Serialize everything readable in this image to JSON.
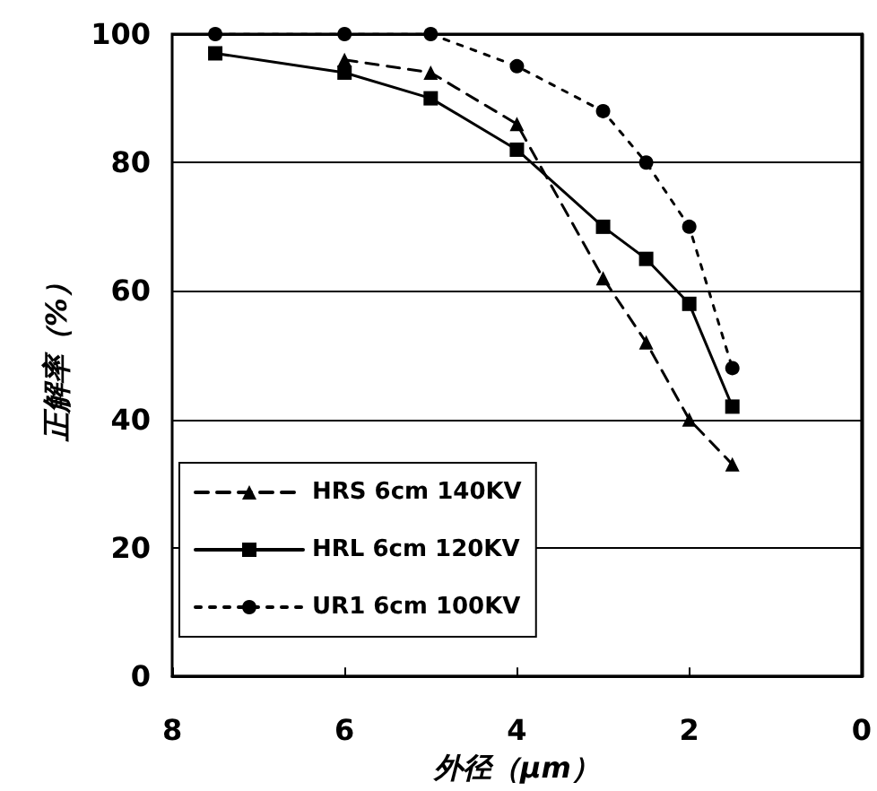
{
  "chart_data": {
    "type": "line",
    "xlabel": "外径（μm）",
    "ylabel": "正解率（%）",
    "x": [
      7.5,
      6,
      5,
      4,
      3,
      2.5,
      2,
      1.5
    ],
    "xlim": [
      8,
      0
    ],
    "xticks": [
      8,
      6,
      4,
      2,
      0
    ],
    "ylim": [
      0,
      100
    ],
    "yticks": [
      0,
      20,
      40,
      60,
      80,
      100
    ],
    "grid": "y",
    "legend": "left",
    "series": [
      {
        "name": "HRS 6cm 140KV",
        "color": "#000000",
        "marker": "triangle",
        "line_style": "dashed",
        "values": [
          null,
          96,
          94,
          86,
          62,
          52,
          40,
          33
        ]
      },
      {
        "name": "HRL 6cm 120KV",
        "color": "#000000",
        "marker": "square",
        "line_style": "solid",
        "values": [
          97,
          94,
          90,
          82,
          70,
          65,
          58,
          42
        ]
      },
      {
        "name": "UR1 6cm 100KV",
        "color": "#000000",
        "marker": "circle",
        "line_style": "dotted",
        "values": [
          100,
          100,
          100,
          95,
          88,
          80,
          70,
          48
        ]
      }
    ]
  }
}
